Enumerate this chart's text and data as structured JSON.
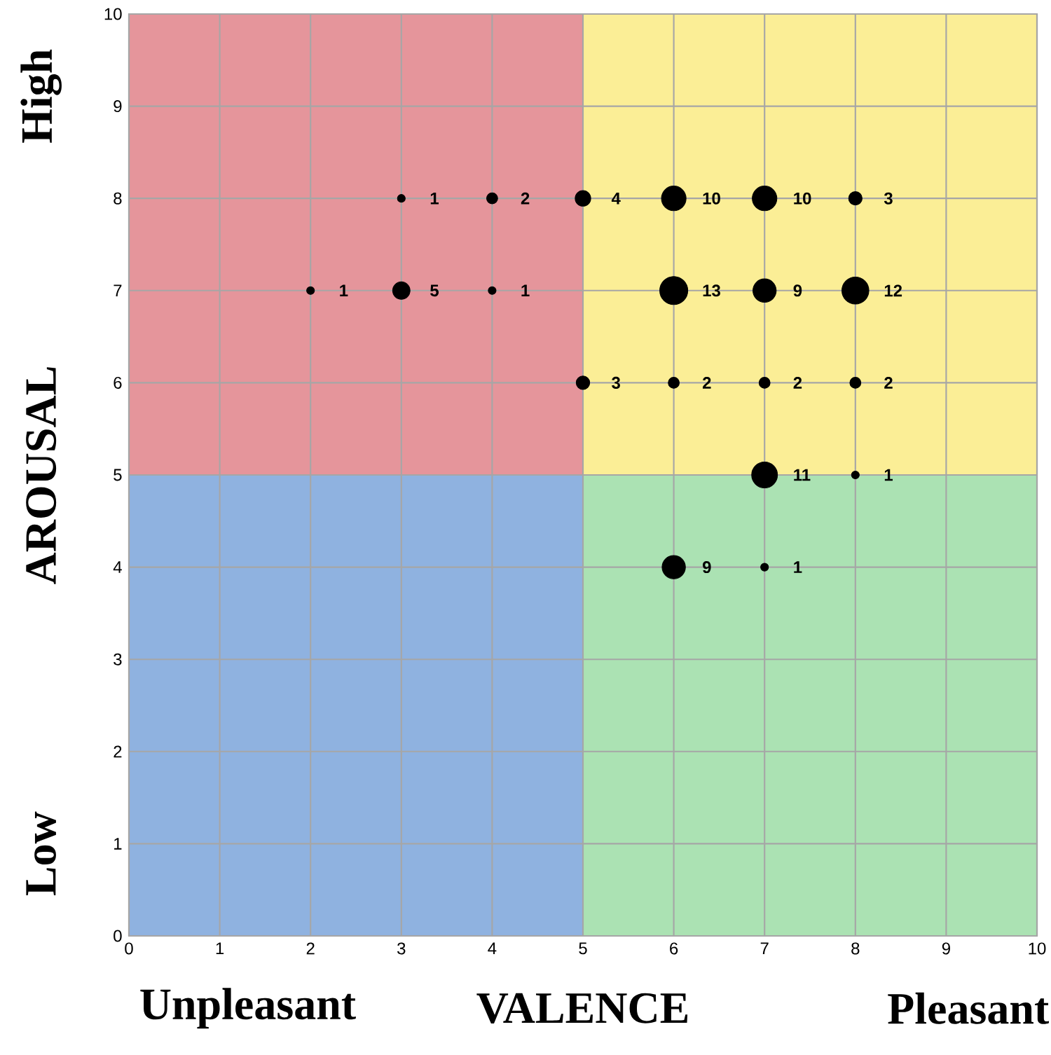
{
  "chart_data": {
    "type": "bubble",
    "xlabel": "VALENCE",
    "ylabel": "AROUSAL",
    "annotations": [
      "High",
      "Low",
      "Unpleasant",
      "Pleasant"
    ],
    "xlim": [
      0,
      10
    ],
    "ylim": [
      0,
      10
    ],
    "xticks": [
      0,
      1,
      2,
      3,
      4,
      5,
      6,
      7,
      8,
      9,
      10
    ],
    "yticks": [
      0,
      1,
      2,
      3,
      4,
      5,
      6,
      7,
      8,
      9,
      10
    ],
    "grid": true,
    "series": [
      {
        "color": "#000000",
        "x": [
          3,
          4,
          5,
          6,
          7,
          8,
          2,
          3,
          4,
          6,
          7,
          8,
          5,
          6,
          7,
          8,
          7,
          8,
          6,
          7
        ],
        "values": [
          8,
          8,
          8,
          8,
          8,
          8,
          7,
          7,
          7,
          7,
          7,
          7,
          6,
          6,
          6,
          6,
          5,
          5,
          4,
          4
        ],
        "sizes": [
          1,
          2,
          4,
          10,
          10,
          3,
          1,
          5,
          1,
          13,
          9,
          12,
          3,
          2,
          2,
          2,
          11,
          1,
          9,
          1
        ],
        "value_labels": [
          "1",
          "2",
          "4",
          "10",
          "10",
          "3",
          "1",
          "5",
          "1",
          "13",
          "9",
          "12",
          "3",
          "2",
          "2",
          "2",
          "11",
          "1",
          "9",
          "1"
        ]
      }
    ]
  }
}
